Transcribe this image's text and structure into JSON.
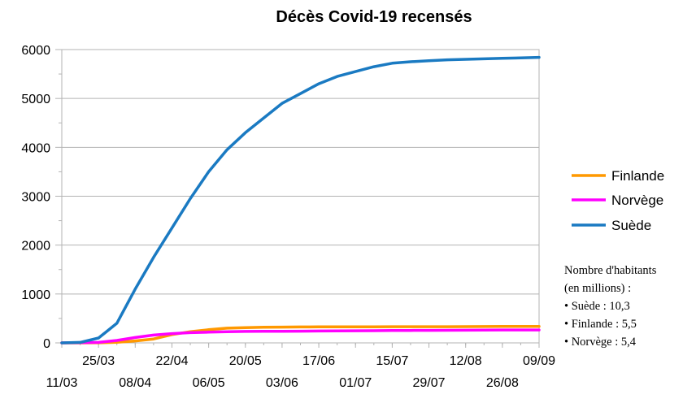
{
  "chart_data": {
    "type": "line",
    "title": "Décès Covid-19 recensés",
    "xlabel": "",
    "ylabel": "",
    "ylim": [
      0,
      6000
    ],
    "yticks": [
      0,
      1000,
      2000,
      3000,
      4000,
      5000,
      6000
    ],
    "xrange": [
      "11/03",
      "09/09"
    ],
    "xticks_upper": [
      "25/03",
      "22/04",
      "20/05",
      "17/06",
      "15/07",
      "12/08",
      "09/09"
    ],
    "xticks_lower": [
      "11/03",
      "08/04",
      "06/05",
      "03/06",
      "01/07",
      "29/07",
      "26/08"
    ],
    "grid": "horizontal",
    "legend_position": "right",
    "x": [
      "11/03",
      "18/03",
      "25/03",
      "01/04",
      "08/04",
      "15/04",
      "22/04",
      "29/04",
      "06/05",
      "13/05",
      "20/05",
      "27/05",
      "03/06",
      "10/06",
      "17/06",
      "24/06",
      "01/07",
      "08/07",
      "15/07",
      "22/07",
      "29/07",
      "05/08",
      "12/08",
      "19/08",
      "26/08",
      "02/09",
      "09/09"
    ],
    "series": [
      {
        "name": "Finlande",
        "color": "#ff9900",
        "values": [
          0,
          0,
          1,
          13,
          40,
          80,
          170,
          230,
          270,
          300,
          310,
          320,
          322,
          325,
          328,
          328,
          329,
          329,
          330,
          330,
          331,
          331,
          333,
          334,
          335,
          336,
          337
        ]
      },
      {
        "name": "Norvège",
        "color": "#ff00ff",
        "values": [
          0,
          3,
          10,
          50,
          110,
          160,
          190,
          210,
          220,
          230,
          235,
          238,
          238,
          240,
          242,
          245,
          248,
          250,
          252,
          254,
          256,
          258,
          260,
          262,
          264,
          265,
          265
        ]
      },
      {
        "name": "Suède",
        "color": "#1a7ac2",
        "values": [
          0,
          10,
          100,
          400,
          1100,
          1750,
          2350,
          2950,
          3500,
          3950,
          4300,
          4600,
          4900,
          5100,
          5300,
          5450,
          5550,
          5650,
          5720,
          5750,
          5770,
          5790,
          5800,
          5810,
          5820,
          5830,
          5840
        ]
      }
    ]
  },
  "note": {
    "heading1": "Nombre d'habitants",
    "heading2": "(en millions) :",
    "items": [
      "• Suède : 10,3",
      "• Finlande : 5,5",
      "• Norvège : 5,4"
    ]
  }
}
